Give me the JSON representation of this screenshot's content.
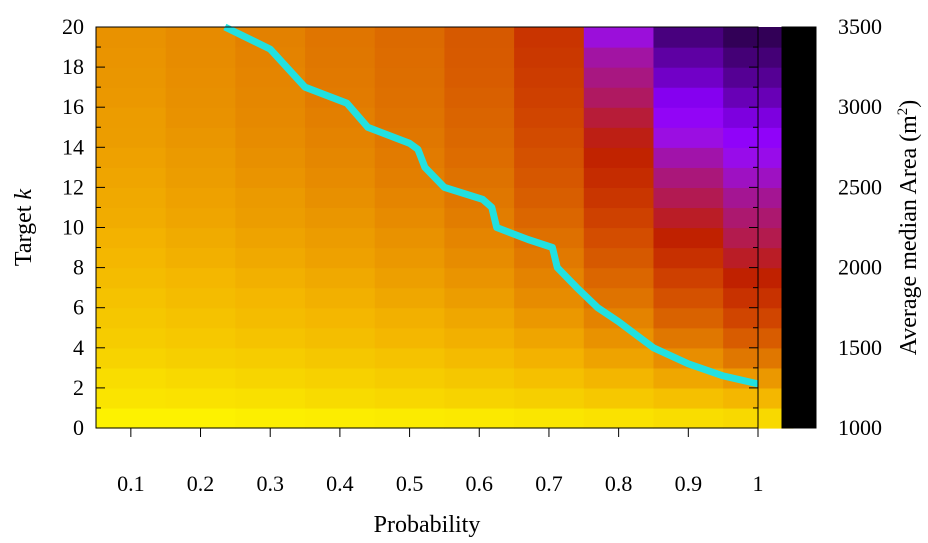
{
  "chart_data": {
    "type": "heatmap",
    "title": "",
    "xlabel": "Probability",
    "ylabel_prefix": "Target ",
    "ylabel_var": "k",
    "colorbar_label": "Average median Area (m",
    "colorbar_label_sup": "2",
    "colorbar_label_suffix": ")",
    "xlim": [
      0.05,
      1.0
    ],
    "ylim": [
      0,
      20
    ],
    "x_ticks": [
      0.1,
      0.2,
      0.3,
      0.4,
      0.5,
      0.6,
      0.7,
      0.8,
      0.9,
      1
    ],
    "x_tick_labels": [
      "0.1",
      "0.2",
      "0.3",
      "0.4",
      "0.5",
      "0.6",
      "0.7",
      "0.8",
      "0.9",
      "1"
    ],
    "y_ticks": [
      0,
      2,
      4,
      6,
      8,
      10,
      12,
      14,
      16,
      18,
      20
    ],
    "y_tick_labels": [
      "0",
      "2",
      "4",
      "6",
      "8",
      "10",
      "12",
      "14",
      "16",
      "18",
      "20"
    ],
    "color_range": [
      1000,
      3500
    ],
    "color_ticks": [
      1000,
      1500,
      2000,
      2500,
      3000,
      3500
    ],
    "color_tick_labels": [
      "1000",
      "1500",
      "2000",
      "2500",
      "3000",
      "3500"
    ],
    "palette": [
      "#000000",
      "#3c0068",
      "#6500b0",
      "#8d00ff",
      "#9a0ee6",
      "#a3159a",
      "#b21a55",
      "#c02000",
      "#d04500",
      "#dc6a00",
      "#e88f00",
      "#f3b300",
      "#f7d400",
      "#ffff00"
    ],
    "columns": [
      {
        "x": 0.1,
        "values": [
          1060,
          1120,
          1150,
          1200,
          1240,
          1270,
          1300,
          1330,
          1360,
          1390,
          1420,
          1440,
          1460,
          1480,
          1500,
          1510,
          1530,
          1540,
          1550,
          1560
        ]
      },
      {
        "x": 0.2,
        "values": [
          1060,
          1130,
          1170,
          1220,
          1260,
          1300,
          1330,
          1360,
          1400,
          1430,
          1460,
          1480,
          1500,
          1520,
          1540,
          1560,
          1570,
          1580,
          1590,
          1600
        ]
      },
      {
        "x": 0.3,
        "values": [
          1070,
          1140,
          1190,
          1240,
          1290,
          1330,
          1360,
          1400,
          1440,
          1470,
          1500,
          1520,
          1550,
          1570,
          1590,
          1610,
          1620,
          1630,
          1640,
          1650
        ]
      },
      {
        "x": 0.4,
        "values": [
          1080,
          1160,
          1210,
          1270,
          1320,
          1360,
          1400,
          1440,
          1480,
          1510,
          1540,
          1570,
          1600,
          1620,
          1640,
          1660,
          1680,
          1690,
          1700,
          1710
        ]
      },
      {
        "x": 0.5,
        "values": [
          1090,
          1180,
          1240,
          1300,
          1360,
          1400,
          1450,
          1490,
          1530,
          1560,
          1600,
          1630,
          1660,
          1680,
          1700,
          1720,
          1740,
          1750,
          1760,
          1770
        ]
      },
      {
        "x": 0.6,
        "values": [
          1100,
          1200,
          1270,
          1340,
          1400,
          1450,
          1500,
          1550,
          1590,
          1630,
          1670,
          1700,
          1730,
          1760,
          1780,
          1800,
          1820,
          1840,
          1850,
          1860
        ]
      },
      {
        "x": 0.7,
        "values": [
          1110,
          1220,
          1310,
          1390,
          1460,
          1530,
          1590,
          1640,
          1690,
          1740,
          1790,
          1830,
          1870,
          1900,
          1930,
          1960,
          1990,
          2010,
          2030,
          2050
        ]
      },
      {
        "x": 0.8,
        "values": [
          1130,
          1260,
          1370,
          1470,
          1560,
          1640,
          1720,
          1790,
          1860,
          1920,
          1980,
          2040,
          2090,
          2140,
          2200,
          2280,
          2380,
          2470,
          2560,
          2700
        ]
      },
      {
        "x": 0.9,
        "values": [
          1150,
          1310,
          1450,
          1580,
          1700,
          1810,
          1900,
          1990,
          2070,
          2150,
          2240,
          2340,
          2450,
          2580,
          2720,
          2850,
          2960,
          3060,
          3150,
          3250
        ]
      },
      {
        "x": 1.0,
        "values": [
          1170,
          1360,
          1530,
          1700,
          1840,
          1960,
          2060,
          2150,
          2240,
          2330,
          2420,
          2520,
          2640,
          2760,
          2880,
          3000,
          3100,
          3190,
          3270,
          3340
        ]
      }
    ],
    "line": {
      "color": "#22e0e0",
      "points": [
        [
          0.235,
          20
        ],
        [
          0.3,
          18.9
        ],
        [
          0.35,
          17
        ],
        [
          0.41,
          16.2
        ],
        [
          0.44,
          15
        ],
        [
          0.5,
          14.2
        ],
        [
          0.512,
          13.9
        ],
        [
          0.522,
          13
        ],
        [
          0.55,
          12
        ],
        [
          0.605,
          11.4
        ],
        [
          0.618,
          11
        ],
        [
          0.625,
          10
        ],
        [
          0.67,
          9.4
        ],
        [
          0.705,
          9
        ],
        [
          0.712,
          8
        ],
        [
          0.74,
          7
        ],
        [
          0.77,
          6
        ],
        [
          0.8,
          5.3
        ],
        [
          0.85,
          4
        ],
        [
          0.9,
          3.2
        ],
        [
          0.95,
          2.6
        ],
        [
          1.0,
          2.2
        ]
      ]
    }
  }
}
